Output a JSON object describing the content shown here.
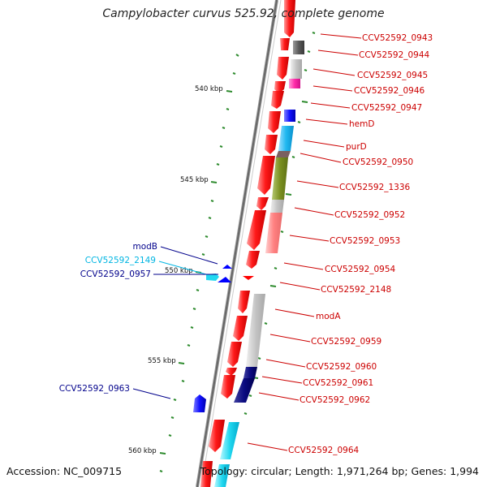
{
  "title": "Campylobacter curvus 525.92, complete genome",
  "footer": {
    "accession": "Accession: NC_009715",
    "topology": "Topology: circular; Length: 1,971,264 bp; Genes: 1,994"
  },
  "scale_labels": [
    "540 kbp",
    "545 kbp",
    "550 kbp",
    "555 kbp",
    "560 kbp"
  ],
  "colors": {
    "forward_gene": "#ff0000",
    "reverse_gene": "#0000ff",
    "backbone": "#808080",
    "label_red": "#cc0000",
    "label_blue": "#00008b",
    "label_cyan": "#00b5e2",
    "tick": "#2e8b2e"
  },
  "genes_right": [
    "CCV52592_0943",
    "CCV52592_0944",
    "CCV52592_0945",
    "CCV52592_0946",
    "CCV52592_0947",
    "hemD",
    "purD",
    "CCV52592_0950",
    "CCV52592_1336",
    "CCV52592_0952",
    "CCV52592_0953",
    "CCV52592_0954",
    "CCV52592_2148",
    "modA",
    "CCV52592_0959",
    "CCV52592_0960",
    "CCV52592_0961",
    "CCV52592_0962",
    "CCV52592_0964"
  ],
  "genes_left": [
    "modB",
    "CCV52592_2149",
    "CCV52592_0957",
    "CCV52592_0963"
  ]
}
